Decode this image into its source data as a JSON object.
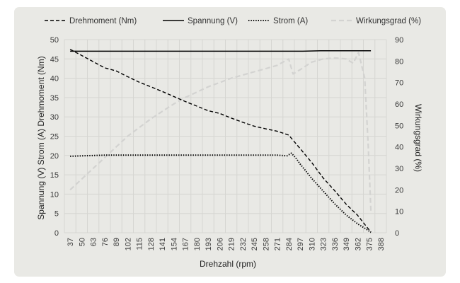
{
  "chart_data": {
    "type": "line",
    "xlabel": "Drehzahl (rpm)",
    "ylabel_left": "Spannung (V) Strom (A) Drehmoment (Nm)",
    "ylabel_right": "Wirkungsgrad (%)",
    "ylim_left": [
      0,
      50
    ],
    "ylim_right": [
      0,
      90
    ],
    "yticks_left": [
      0,
      5,
      10,
      15,
      20,
      25,
      30,
      35,
      40,
      45,
      50
    ],
    "yticks_right": [
      0,
      10,
      20,
      30,
      40,
      50,
      60,
      70,
      80,
      90
    ],
    "x_ticks": [
      37,
      50,
      63,
      76,
      89,
      102,
      115,
      128,
      141,
      154,
      167,
      180,
      193,
      206,
      219,
      232,
      245,
      258,
      271,
      284,
      297,
      310,
      323,
      336,
      349,
      362,
      375,
      388
    ],
    "grid": true,
    "legend_position": "top",
    "series": [
      {
        "name": "Drehmoment (Nm)",
        "axis": "left",
        "style": "dashed",
        "color": "#000000",
        "x": [
          37,
          50,
          63,
          76,
          89,
          102,
          115,
          128,
          141,
          154,
          167,
          180,
          193,
          206,
          219,
          232,
          245,
          258,
          271,
          284,
          297,
          310,
          323,
          336,
          349,
          362,
          372,
          377
        ],
        "y": [
          47.5,
          45.9,
          44.3,
          42.7,
          41.9,
          40.4,
          39.0,
          37.8,
          36.6,
          35.3,
          34.0,
          32.8,
          31.6,
          30.9,
          29.7,
          28.6,
          27.6,
          26.9,
          26.3,
          25.3,
          21.8,
          18.2,
          14.2,
          10.9,
          7.4,
          4.5,
          1.6,
          0.2
        ]
      },
      {
        "name": "Spannung (V)",
        "axis": "left",
        "style": "solid",
        "color": "#000000",
        "x": [
          37,
          100,
          200,
          300,
          320,
          377
        ],
        "y": [
          47.0,
          47.0,
          47.0,
          47.0,
          47.1,
          47.1
        ]
      },
      {
        "name": "Strom (A)",
        "axis": "left",
        "style": "dotted",
        "color": "#000000",
        "x": [
          37,
          50,
          63,
          76,
          89,
          102,
          115,
          128,
          141,
          154,
          167,
          180,
          193,
          206,
          219,
          232,
          245,
          258,
          271,
          282,
          287,
          292,
          297,
          310,
          323,
          336,
          349,
          362,
          372,
          377
        ],
        "y": [
          19.8,
          19.9,
          20.0,
          20.1,
          20.1,
          20.1,
          20.1,
          20.1,
          20.1,
          20.1,
          20.1,
          20.1,
          20.1,
          20.1,
          20.1,
          20.1,
          20.1,
          20.1,
          20.1,
          19.9,
          20.6,
          19.4,
          17.8,
          14.1,
          10.8,
          7.5,
          4.6,
          2.3,
          0.9,
          0.1
        ]
      },
      {
        "name": "Wirkungsgrad (%)",
        "axis": "right",
        "style": "dashed",
        "color": "#d3d3d1",
        "x": [
          37,
          50,
          63,
          76,
          89,
          102,
          115,
          128,
          141,
          154,
          167,
          180,
          193,
          206,
          219,
          232,
          245,
          258,
          271,
          284,
          289,
          297,
          310,
          323,
          336,
          349,
          357,
          363,
          370,
          374,
          377
        ],
        "y": [
          20,
          25,
          30,
          35,
          40,
          45,
          49,
          53,
          56.5,
          60,
          63,
          65.5,
          68,
          70,
          72,
          73.5,
          75,
          76.5,
          78,
          81,
          74,
          76,
          79.5,
          81,
          81.5,
          81,
          79,
          84,
          72,
          40,
          10
        ]
      }
    ]
  }
}
